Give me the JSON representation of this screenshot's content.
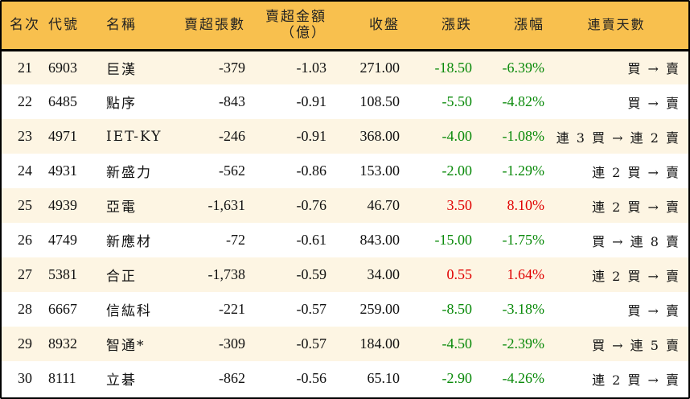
{
  "headers": [
    "名次",
    "代號",
    "名稱",
    "賣超張數",
    "賣超金額\n（億）",
    "收盤",
    "漲跌",
    "漲幅",
    "連賣天數"
  ],
  "colors": {
    "header_bg": "#F8C04E",
    "row_alt_bg": "#FDF5E3",
    "down": "#0A8A0A",
    "up": "#E00000"
  },
  "rows": [
    {
      "rank": "21",
      "code": "6903",
      "name": "巨漢",
      "shares": "-379",
      "amount": "-1.03",
      "close": "271.00",
      "change": "-18.50",
      "pct": "-6.39%",
      "streak": "買 → 賣",
      "dir": "neg"
    },
    {
      "rank": "22",
      "code": "6485",
      "name": "點序",
      "shares": "-843",
      "amount": "-0.91",
      "close": "108.50",
      "change": "-5.50",
      "pct": "-4.82%",
      "streak": "買 → 賣",
      "dir": "neg"
    },
    {
      "rank": "23",
      "code": "4971",
      "name": "IET-KY",
      "shares": "-246",
      "amount": "-0.91",
      "close": "368.00",
      "change": "-4.00",
      "pct": "-1.08%",
      "streak": "連 3 買 → 連 2 賣",
      "dir": "neg"
    },
    {
      "rank": "24",
      "code": "4931",
      "name": "新盛力",
      "shares": "-562",
      "amount": "-0.86",
      "close": "153.00",
      "change": "-2.00",
      "pct": "-1.29%",
      "streak": "連 2 買 → 賣",
      "dir": "neg"
    },
    {
      "rank": "25",
      "code": "4939",
      "name": "亞電",
      "shares": "-1,631",
      "amount": "-0.76",
      "close": "46.70",
      "change": "3.50",
      "pct": "8.10%",
      "streak": "連 2 買 → 賣",
      "dir": "pos"
    },
    {
      "rank": "26",
      "code": "4749",
      "name": "新應材",
      "shares": "-72",
      "amount": "-0.61",
      "close": "843.00",
      "change": "-15.00",
      "pct": "-1.75%",
      "streak": "買 → 連 8 賣",
      "dir": "neg"
    },
    {
      "rank": "27",
      "code": "5381",
      "name": "合正",
      "shares": "-1,738",
      "amount": "-0.59",
      "close": "34.00",
      "change": "0.55",
      "pct": "1.64%",
      "streak": "連 2 買 → 賣",
      "dir": "pos"
    },
    {
      "rank": "28",
      "code": "6667",
      "name": "信紘科",
      "shares": "-221",
      "amount": "-0.57",
      "close": "259.00",
      "change": "-8.50",
      "pct": "-3.18%",
      "streak": "買 → 賣",
      "dir": "neg"
    },
    {
      "rank": "29",
      "code": "8932",
      "name": "智通*",
      "shares": "-309",
      "amount": "-0.57",
      "close": "184.00",
      "change": "-4.50",
      "pct": "-2.39%",
      "streak": "買 → 連 5 賣",
      "dir": "neg"
    },
    {
      "rank": "30",
      "code": "8111",
      "name": "立碁",
      "shares": "-862",
      "amount": "-0.56",
      "close": "65.10",
      "change": "-2.90",
      "pct": "-4.26%",
      "streak": "連 2 買 → 賣",
      "dir": "neg"
    }
  ]
}
